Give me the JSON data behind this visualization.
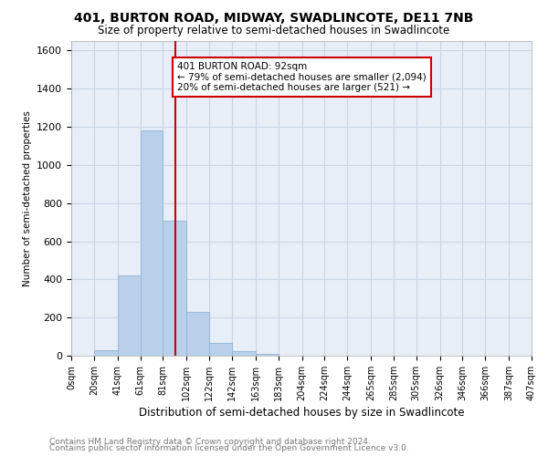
{
  "title": "401, BURTON ROAD, MIDWAY, SWADLINCOTE, DE11 7NB",
  "subtitle": "Size of property relative to semi-detached houses in Swadlincote",
  "xlabel": "Distribution of semi-detached houses by size in Swadlincote",
  "ylabel": "Number of semi-detached properties",
  "footnote1": "Contains HM Land Registry data © Crown copyright and database right 2024.",
  "footnote2": "Contains public sector information licensed under the Open Government Licence v3.0.",
  "annotation_title": "401 BURTON ROAD: 92sqm",
  "annotation_line1": "← 79% of semi-detached houses are smaller (2,094)",
  "annotation_line2": "20% of semi-detached houses are larger (521) →",
  "property_size": 92,
  "bin_edges": [
    0,
    20,
    41,
    61,
    81,
    102,
    122,
    142,
    163,
    183,
    204,
    224,
    244,
    265,
    285,
    305,
    326,
    346,
    366,
    387,
    407
  ],
  "bin_counts": [
    0,
    30,
    420,
    1180,
    710,
    230,
    65,
    25,
    10,
    0,
    0,
    0,
    0,
    0,
    0,
    0,
    0,
    0,
    0,
    0
  ],
  "bar_color": "#b8d0ea",
  "bar_edge_color": "#9ab8d8",
  "vline_color": "#cc0000",
  "vline_x": 92,
  "annotation_box_color": "#cc0000",
  "annotation_bg": "#ffffff",
  "grid_color": "#c8d4e4",
  "ylim": [
    0,
    1650
  ],
  "yticks": [
    0,
    200,
    400,
    600,
    800,
    1000,
    1200,
    1400,
    1600
  ],
  "background_color": "#e8eef8"
}
